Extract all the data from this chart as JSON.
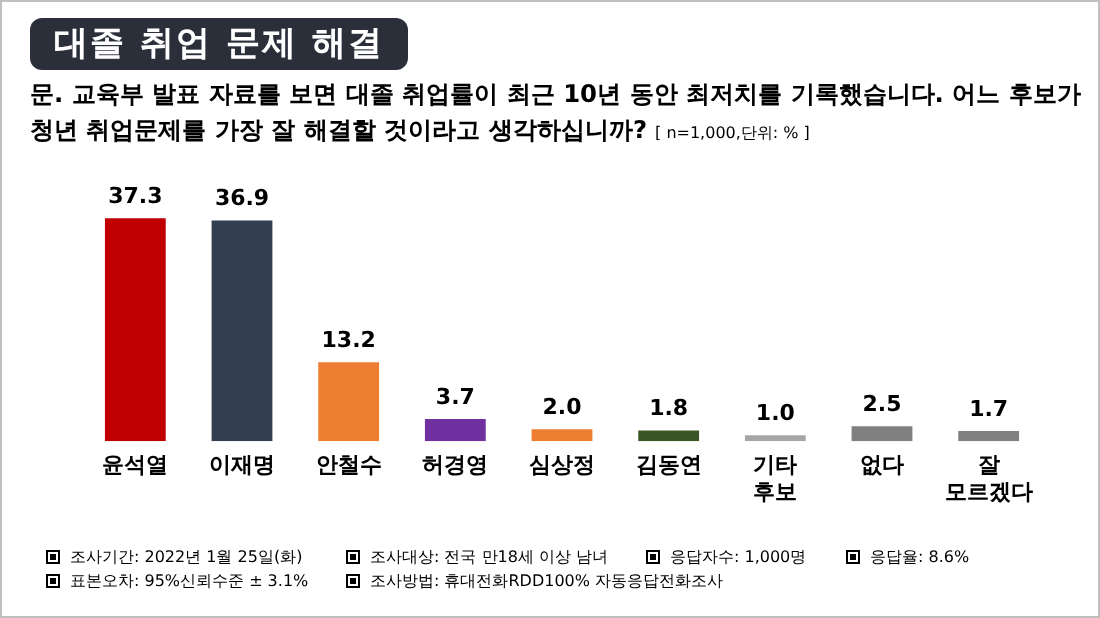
{
  "chart_data": {
    "type": "bar",
    "title": "대졸 취업 문제 해결",
    "subtitle": "문. 교육부 발표 자료를 보면 대졸 취업률이 최근 10년 동안 최저치를 기록했습니다. 어느 후보가 청년 취업문제를 가장 잘 해결할 것이라고 생각하십니까?",
    "annotations": [
      "[ n=1,000,단위: % ]",
      "조사기간: 2022년 1월 25일(화)",
      "조사대상: 전국 만18세 이상 남녀",
      "응답자수: 1,000명",
      "응답율: 8.6%",
      "표본오차: 95%신뢰수준 ± 3.1%",
      "조사방법: 휴대전화RDD100% 자동응답전화조사"
    ],
    "categories": [
      "윤석열",
      "이재명",
      "안철수",
      "허경영",
      "심상정",
      "김동연",
      "기타 후보",
      "없다",
      "잘 모르겠다"
    ],
    "values": [
      37.3,
      36.9,
      13.2,
      3.7,
      2.0,
      1.8,
      1.0,
      2.5,
      1.7
    ],
    "value_labels": [
      "37.3",
      "36.9",
      "13.2",
      "3.7",
      "2.0",
      "1.8",
      "1.0",
      "2.5",
      "1.7"
    ],
    "colors": [
      "#c00000",
      "#333f50",
      "#ed7d31",
      "#7030a0",
      "#ed7d31",
      "#375623",
      "#a6a6a6",
      "#808080",
      "#808080"
    ],
    "grid": false,
    "legend": false
  }
}
